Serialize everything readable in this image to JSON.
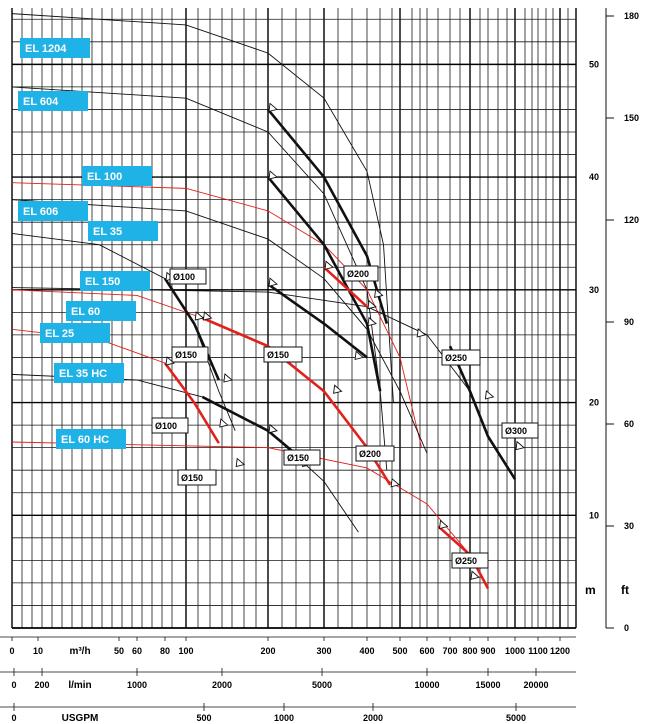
{
  "chart_data": {
    "type": "line",
    "title": "",
    "x_axes": [
      {
        "unit": "m³/h",
        "ticks": [
          "0",
          "10",
          "50",
          "60",
          "80",
          "100",
          "200",
          "300",
          "400",
          "500",
          "600",
          "700",
          "800",
          "900",
          "1000",
          "1100",
          "1200"
        ]
      },
      {
        "unit": "l/min",
        "ticks": [
          "0",
          "200",
          "1000",
          "2000",
          "5000",
          "10000",
          "15000",
          "20000"
        ]
      },
      {
        "unit": "USGPM",
        "ticks": [
          "0",
          "500",
          "1000",
          "2000",
          "5000"
        ]
      }
    ],
    "y_axes": [
      {
        "unit": "m",
        "ticks": [
          "10",
          "20",
          "30",
          "40",
          "50"
        ]
      },
      {
        "unit": "ft",
        "ticks": [
          "0",
          "30",
          "60",
          "90",
          "120",
          "150",
          "180"
        ]
      }
    ],
    "pump_labels": [
      "EL 1204",
      "EL 604",
      "EL 100",
      "EL 606",
      "EL 35",
      "EL 150",
      "EL 60",
      "EL 25",
      "EL 35 HC",
      "EL 60 HC"
    ],
    "diameter_labels": [
      "Ø100",
      "Ø150",
      "Ø150",
      "Ø100",
      "Ø150",
      "Ø150",
      "Ø200",
      "Ø200",
      "Ø250",
      "Ø300",
      "Ø250"
    ],
    "series": [
      {
        "name": "EL 1204",
        "points": [
          [
            0,
            54.5
          ],
          [
            100,
            53.5
          ],
          [
            200,
            51
          ],
          [
            300,
            47
          ],
          [
            400,
            40.5
          ],
          [
            450,
            34
          ],
          [
            480,
            20
          ]
        ]
      },
      {
        "name": "EL 604",
        "points": [
          [
            0,
            48
          ],
          [
            100,
            47
          ],
          [
            200,
            44
          ],
          [
            300,
            38.5
          ],
          [
            400,
            30
          ],
          [
            440,
            21
          ],
          [
            460,
            14
          ]
        ]
      },
      {
        "name": "EL 100",
        "points": [
          [
            0,
            39.5
          ],
          [
            100,
            39
          ],
          [
            200,
            37
          ],
          [
            300,
            34
          ],
          [
            400,
            30
          ],
          [
            500,
            24
          ],
          [
            580,
            16
          ]
        ]
      },
      {
        "name": "EL 606",
        "points": [
          [
            0,
            38
          ],
          [
            100,
            37
          ],
          [
            200,
            34.5
          ],
          [
            300,
            31
          ],
          [
            400,
            26.5
          ],
          [
            500,
            21
          ],
          [
            600,
            15.5
          ]
        ]
      },
      {
        "name": "EL 35",
        "points": [
          [
            0,
            35
          ],
          [
            40,
            34
          ],
          [
            80,
            31
          ],
          [
            110,
            27
          ],
          [
            140,
            21
          ],
          [
            160,
            17.5
          ]
        ]
      },
      {
        "name": "EL 150",
        "points": [
          [
            0,
            30.2
          ],
          [
            200,
            29.8
          ],
          [
            400,
            28.5
          ],
          [
            600,
            26
          ],
          [
            800,
            21
          ],
          [
            900,
            17
          ],
          [
            1000,
            13.2
          ]
        ]
      },
      {
        "name": "EL 60",
        "points": [
          [
            0,
            30
          ],
          [
            60,
            29.5
          ],
          [
            120,
            27.5
          ],
          [
            200,
            25
          ],
          [
            300,
            21
          ],
          [
            400,
            16
          ],
          [
            470,
            12.7
          ]
        ]
      },
      {
        "name": "EL 25",
        "points": [
          [
            0,
            26.5
          ],
          [
            40,
            25.6
          ],
          [
            80,
            23.5
          ],
          [
            110,
            20
          ],
          [
            140,
            16.4
          ]
        ]
      },
      {
        "name": "EL 35 HC",
        "points": [
          [
            0,
            22.5
          ],
          [
            60,
            22
          ],
          [
            120,
            20.5
          ],
          [
            200,
            17.5
          ],
          [
            300,
            13
          ],
          [
            380,
            8.5
          ]
        ]
      },
      {
        "name": "EL 60 HC",
        "points": [
          [
            0,
            16.5
          ],
          [
            200,
            16
          ],
          [
            400,
            14.2
          ],
          [
            600,
            11
          ],
          [
            800,
            6.5
          ],
          [
            900,
            3.5
          ]
        ]
      }
    ],
    "highlighted_ranges_red": [
      "EL 100",
      "EL 60",
      "EL 25",
      "EL 60 HC"
    ],
    "ylim": [
      0,
      55
    ],
    "grid": true
  }
}
